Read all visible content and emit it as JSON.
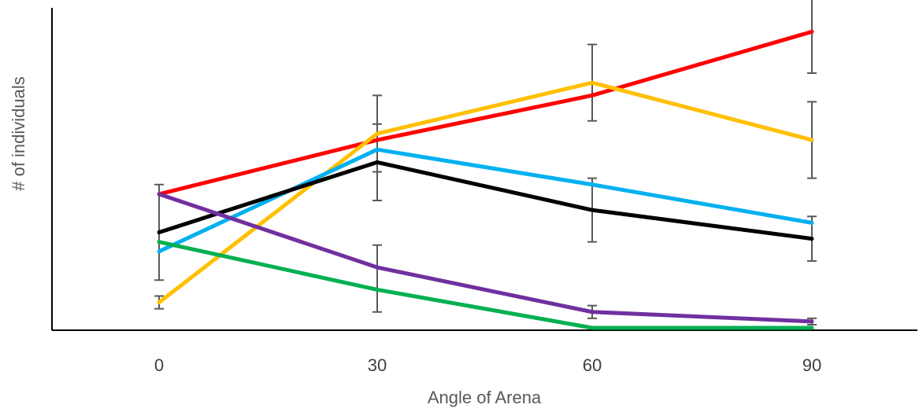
{
  "chart_data": {
    "type": "line",
    "title": "",
    "xlabel": "Angle of Arena",
    "ylabel": "# of individuals",
    "categories": [
      "0",
      "30",
      "60",
      "90"
    ],
    "ylim": [
      0,
      100
    ],
    "grid": false,
    "legend": "none",
    "series": [
      {
        "color": "#ff0000",
        "values": [
          42,
          59,
          73,
          93
        ],
        "errors": [
          0,
          0,
          0,
          13
        ]
      },
      {
        "color": "#ffc000",
        "values": [
          8,
          61,
          77,
          59
        ],
        "errors": [
          2,
          12,
          12,
          12
        ]
      },
      {
        "color": "#00b0f0",
        "values": [
          24,
          56,
          45,
          33
        ],
        "errors": [
          0,
          0,
          0,
          0
        ]
      },
      {
        "color": "#000000",
        "values": [
          30,
          52,
          37,
          28
        ],
        "errors": [
          15,
          12,
          10,
          7
        ]
      },
      {
        "color": "#7030a0",
        "values": [
          42,
          19,
          5,
          2
        ],
        "errors": [
          0,
          7,
          2,
          1
        ]
      },
      {
        "color": "#00b050",
        "values": [
          27,
          12,
          0,
          0
        ],
        "errors": [
          0,
          7,
          0,
          0
        ]
      }
    ]
  }
}
